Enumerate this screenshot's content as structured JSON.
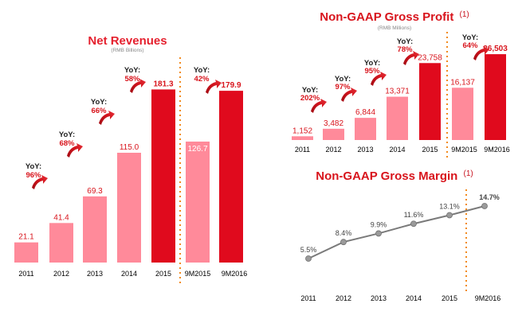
{
  "chart_data": [
    {
      "type": "bar",
      "title": "Net Revenues",
      "unit": "(RMB Billions)",
      "categories": [
        "2011",
        "2012",
        "2013",
        "2014",
        "2015",
        "9M2015",
        "9M2016"
      ],
      "values": [
        21.1,
        41.4,
        69.3,
        115.0,
        181.3,
        126.7,
        179.9
      ],
      "value_labels": [
        "21.1",
        "41.4",
        "69.3",
        "115.0",
        "181.3",
        "126.7",
        "179.9"
      ],
      "yoy_label": "YoY:",
      "yoy": [
        "96%",
        "68%",
        "66%",
        "58%",
        "42%"
      ],
      "ylim": [
        0,
        200
      ],
      "colors": {
        "light": "#ff8a9a",
        "dark": "#e00a1d",
        "divider": "#f28a1e"
      }
    },
    {
      "type": "bar",
      "title": "Non-GAAP Gross Profit",
      "footnote": "(1)",
      "unit": "(RMB Millions)",
      "categories": [
        "2011",
        "2012",
        "2013",
        "2014",
        "2015",
        "9M2015",
        "9M2016"
      ],
      "values": [
        1152,
        3482,
        6844,
        13371,
        23758,
        16137,
        26503
      ],
      "value_labels": [
        "1,152",
        "3,482",
        "6,844",
        "13,371",
        "23,758",
        "16,137",
        "26,503"
      ],
      "yoy_label": "YoY:",
      "yoy": [
        "202%",
        "97%",
        "95%",
        "78%",
        "64%"
      ],
      "ylim": [
        0,
        28000
      ],
      "colors": {
        "light": "#ff8a9a",
        "dark": "#e00a1d",
        "divider": "#f28a1e"
      }
    },
    {
      "type": "line",
      "title": "Non-GAAP Gross Margin",
      "footnote": "(1)",
      "categories": [
        "2011",
        "2012",
        "2013",
        "2014",
        "2015",
        "9M2016"
      ],
      "values": [
        5.5,
        8.4,
        9.9,
        11.6,
        13.1,
        14.7
      ],
      "value_labels": [
        "5.5%",
        "8.4%",
        "9.9%",
        "11.6%",
        "13.1%",
        "14.7%"
      ],
      "ylim": [
        0,
        16
      ],
      "colors": {
        "line": "#7a7a7a",
        "marker": "#9a9a9a",
        "divider": "#f28a1e"
      }
    }
  ]
}
